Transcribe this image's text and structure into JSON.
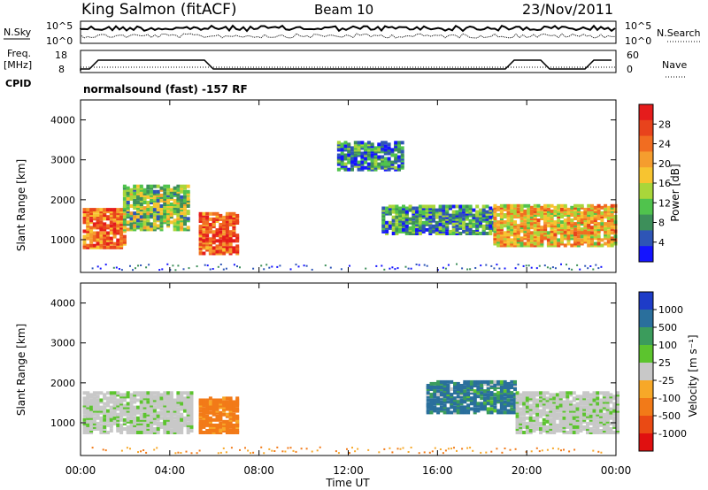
{
  "header": {
    "station": "King Salmon (fitACF)",
    "beam": "Beam 10",
    "date": "23/Nov/2011"
  },
  "noise_panel": {
    "left_label": "N.Sky",
    "right_label": "N.Search",
    "left_ticks": [
      "10^5",
      "10^0"
    ],
    "right_ticks": [
      "10^5",
      "10^0"
    ]
  },
  "freq_panel": {
    "left_label_line1": "Freq.",
    "left_label_line2": "[MHz]",
    "right_label": "Nave",
    "left_ticks": [
      "18",
      "8"
    ],
    "right_ticks": [
      "60",
      "0"
    ]
  },
  "cpid_panel": {
    "label": "CPID",
    "text": "normalsound (fast) -157 RF"
  },
  "power_panel": {
    "ylabel": "Slant Range [km]",
    "yticks": [
      "4000",
      "3000",
      "2000",
      "1000"
    ],
    "colorbar_label": "Power [dB]",
    "colorbar_ticks": [
      "28",
      "24",
      "20",
      "16",
      "12",
      "8",
      "4"
    ],
    "colors": [
      "#1414ff",
      "#2e55b6",
      "#3d8f5a",
      "#50c34d",
      "#a9d63a",
      "#f7c430",
      "#f59d2e",
      "#f16d21",
      "#e8431c",
      "#e51c1c"
    ]
  },
  "velocity_panel": {
    "ylabel": "Slant Range [km]",
    "yticks": [
      "4000",
      "3000",
      "2000",
      "1000"
    ],
    "colorbar_label": "Velocity [m s⁻¹]",
    "colorbar_ticks": [
      "1000",
      "500",
      "100",
      "25",
      "-25",
      "-100",
      "-500",
      "-1000"
    ],
    "colors": [
      "#1e3cc8",
      "#2a6f9c",
      "#3b9c5c",
      "#5cc42e",
      "#c8c8c8",
      "#f7a828",
      "#f27a18",
      "#ea4a14",
      "#e01010"
    ]
  },
  "xaxis": {
    "ticks": [
      "00:00",
      "04:00",
      "08:00",
      "12:00",
      "16:00",
      "20:00",
      "00:00"
    ],
    "label": "Time UT"
  },
  "chart_data": {
    "type": "heatmap",
    "x_range_hours": [
      0,
      24
    ],
    "y_range_km": [
      180,
      4500
    ],
    "power_range_db": [
      0,
      30
    ],
    "velocity_range_ms": [
      -1000,
      1000
    ],
    "power_regions": [
      {
        "t": [
          0.1,
          1.9
        ],
        "km": [
          850,
          1800
        ],
        "db": 22
      },
      {
        "t": [
          1.9,
          4.8
        ],
        "km": [
          1300,
          2400
        ],
        "db": 12
      },
      {
        "t": [
          5.3,
          7.1
        ],
        "km": [
          700,
          1700
        ],
        "db": 24
      },
      {
        "t": [
          11.5,
          14.5
        ],
        "km": [
          2800,
          3500
        ],
        "db": 6
      },
      {
        "t": [
          13.5,
          18.5
        ],
        "km": [
          1200,
          1900
        ],
        "db": 8
      },
      {
        "t": [
          18.5,
          24.0
        ],
        "km": [
          900,
          1900
        ],
        "db": 18
      }
    ],
    "velocity_regions": [
      {
        "t": [
          0.1,
          5.0
        ],
        "km": [
          800,
          1800
        ],
        "v": 0
      },
      {
        "t": [
          5.3,
          7.1
        ],
        "km": [
          800,
          1700
        ],
        "v": -200
      },
      {
        "t": [
          15.5,
          19.5
        ],
        "km": [
          1300,
          2100
        ],
        "v": 150
      },
      {
        "t": [
          19.5,
          24.0
        ],
        "km": [
          800,
          1800
        ],
        "v": 0
      }
    ]
  }
}
